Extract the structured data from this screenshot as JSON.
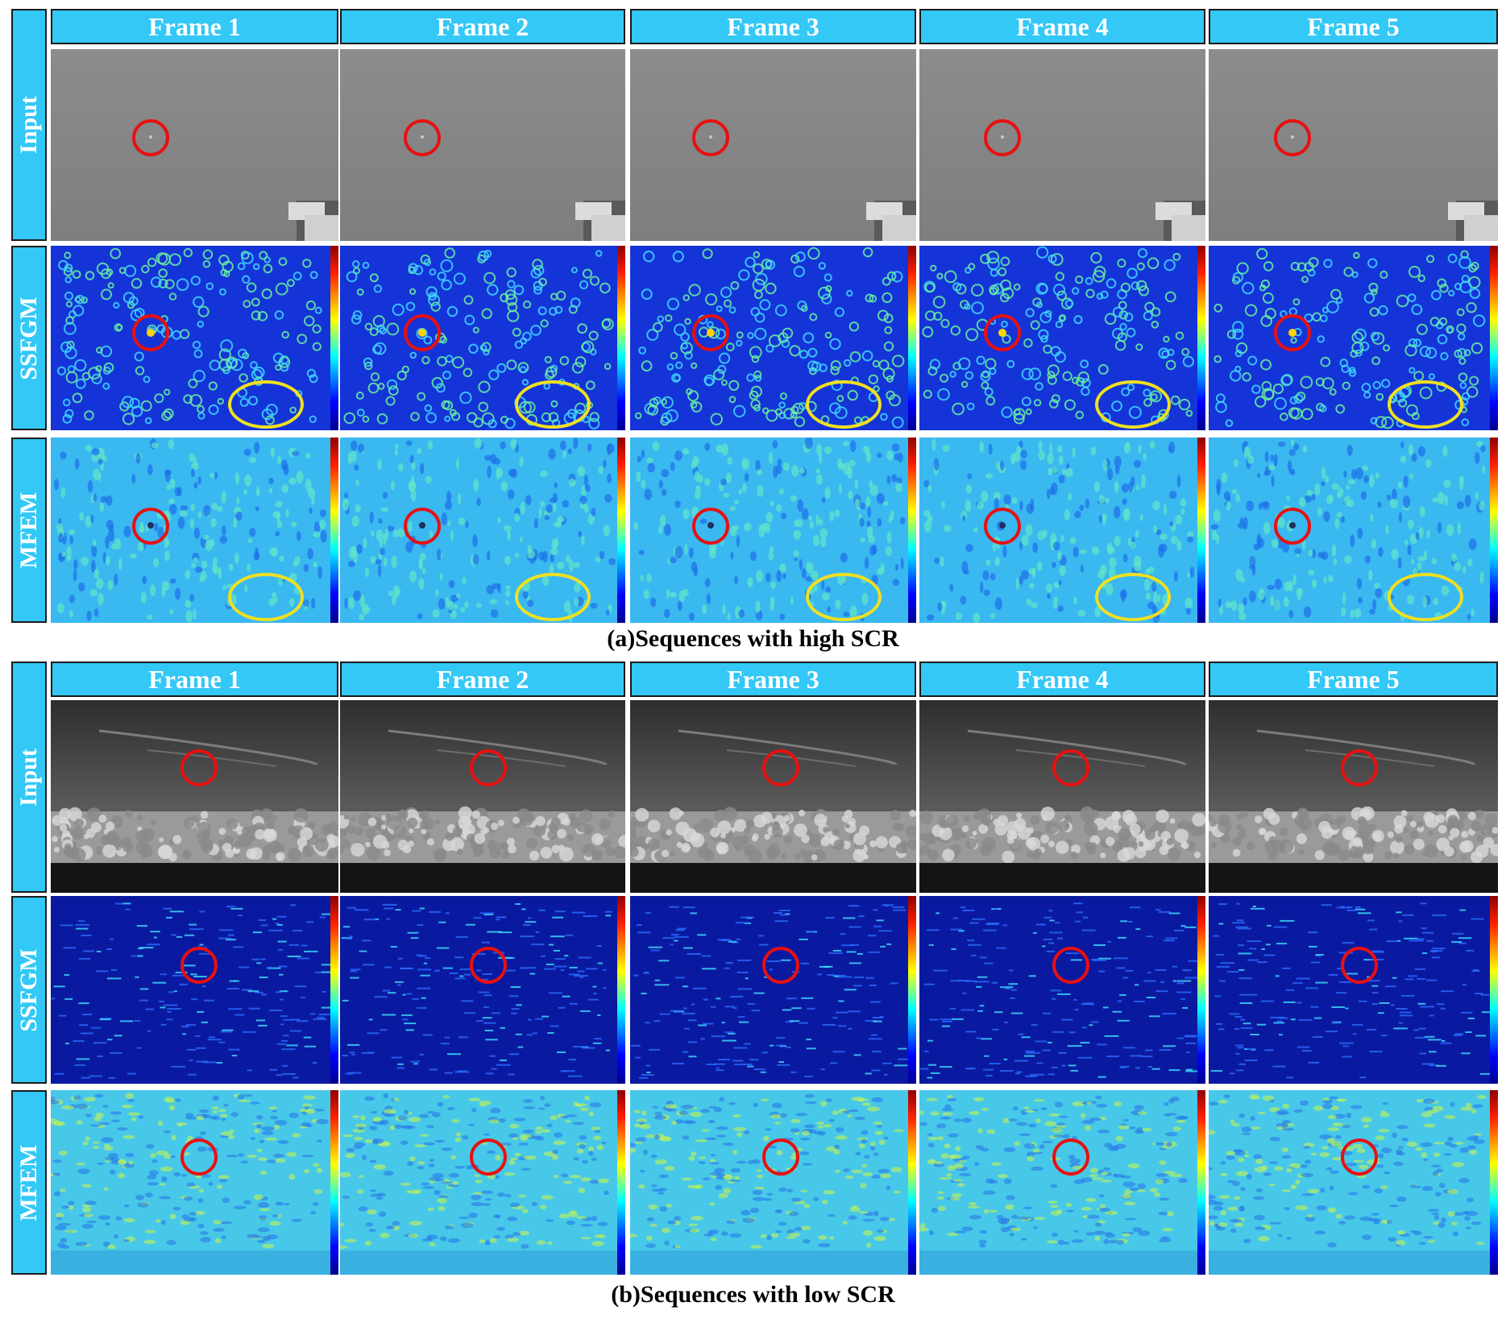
{
  "sections": [
    {
      "caption": "(a)Sequences  with high SCR",
      "frames": [
        "Frame 1",
        "Frame 2",
        "Frame 3",
        "Frame 4",
        "Frame 5"
      ],
      "rows": [
        "Input",
        "SSFGM",
        "MFEM"
      ]
    },
    {
      "caption": "(b)Sequences  with low SCR",
      "frames": [
        "Frame 1",
        "Frame 2",
        "Frame 3",
        "Frame 4",
        "Frame 5"
      ],
      "rows": [
        "Input",
        "SSFGM",
        "MFEM"
      ]
    }
  ],
  "colors": {
    "header_bg": "#33c8f6",
    "target_circle": "#e81010",
    "clutter_ellipse": "#f0e020"
  }
}
